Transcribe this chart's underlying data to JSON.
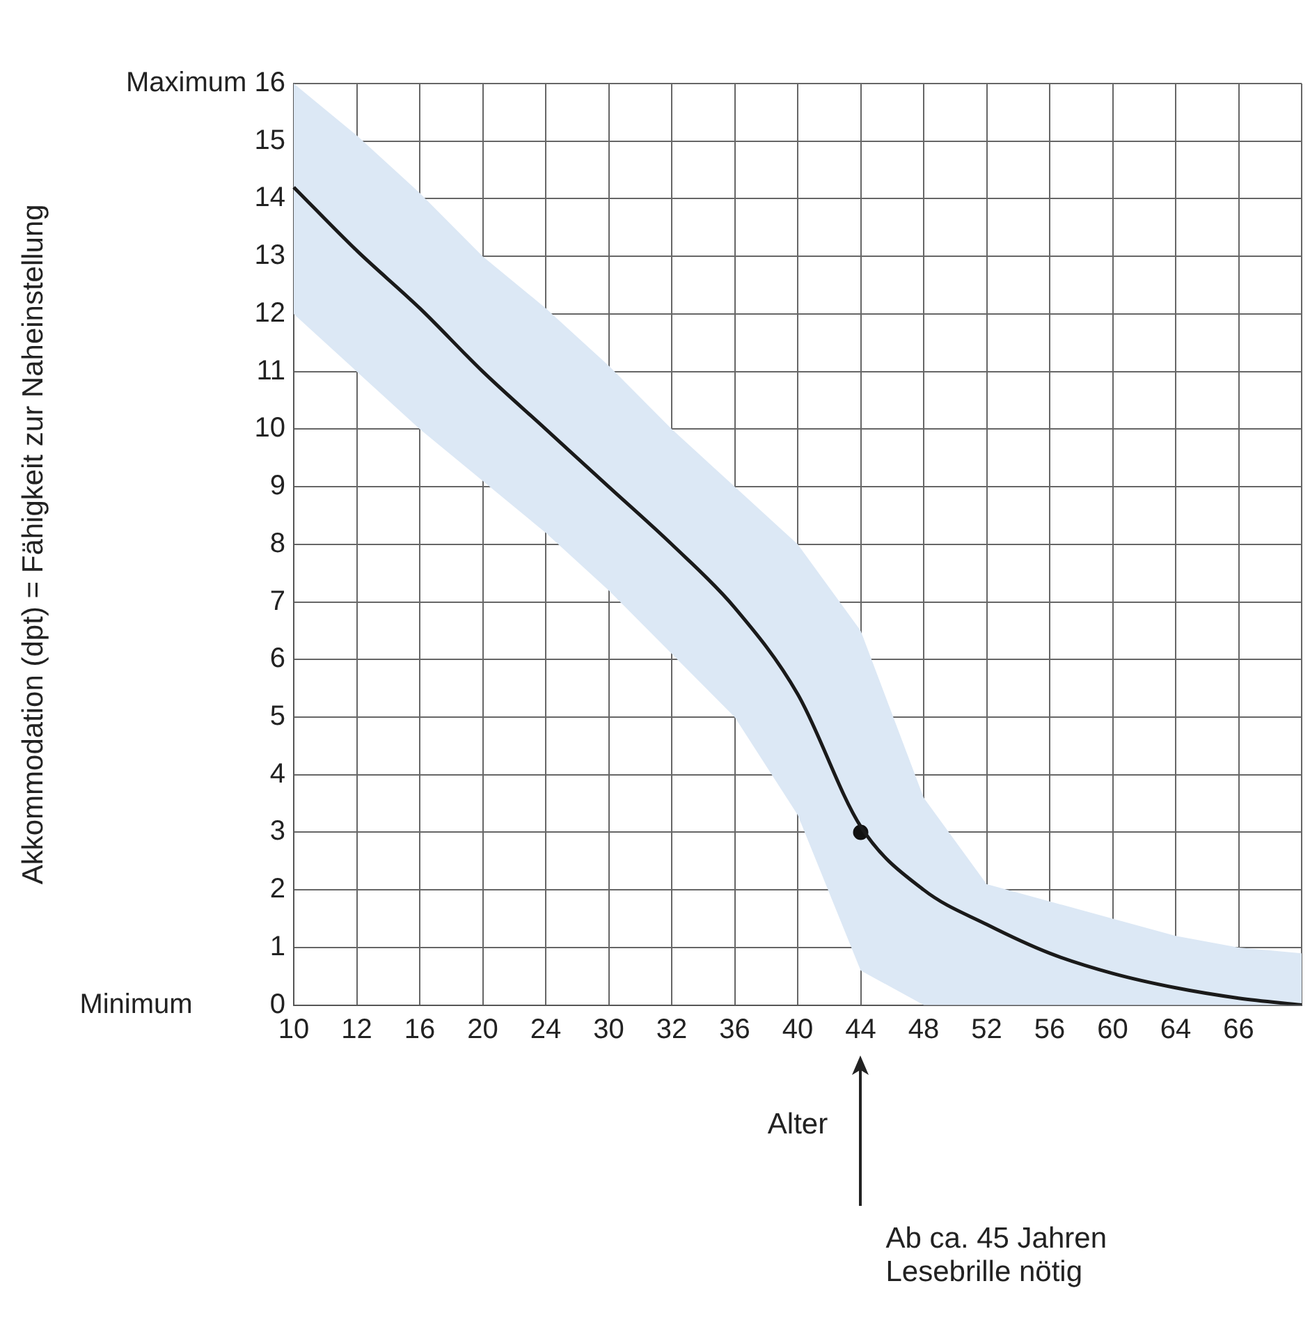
{
  "chart_data": {
    "type": "line",
    "xlabel": "Alter",
    "ylabel": "Akkommodation (dpt) = Fähigkeit zur Naheinstellung",
    "categories": [
      "10",
      "12",
      "16",
      "20",
      "24",
      "30",
      "32",
      "36",
      "40",
      "44",
      "48",
      "52",
      "56",
      "60",
      "64",
      "66",
      null
    ],
    "series": [
      {
        "color": "#1a1a1a",
        "values": [
          14.2,
          13.1,
          12.1,
          11.0,
          10.0,
          9.0,
          8.0,
          6.9,
          5.4,
          3.1,
          2.0,
          1.4,
          0.9,
          0.55,
          0.3,
          0.12,
          0.0
        ],
        "lower": [
          12.0,
          11.0,
          10.0,
          9.1,
          8.2,
          7.2,
          6.1,
          5.0,
          3.3,
          0.6,
          0.0,
          0.0,
          0.0,
          0.0,
          0.0,
          0.0,
          0.0
        ],
        "upper": [
          16.0,
          15.1,
          14.1,
          13.0,
          12.1,
          11.1,
          10.0,
          9.0,
          8.0,
          6.5,
          3.6,
          2.1,
          1.8,
          1.5,
          1.2,
          1.0,
          0.9
        ]
      },
      {
        "type": "scatter",
        "color": "#111111",
        "marker": "circle",
        "x": [
          "44"
        ],
        "values": [
          3
        ]
      }
    ],
    "ylim": [
      0,
      16
    ],
    "yticks": [
      {
        "value": 0,
        "label": "Minimum          0"
      },
      1,
      2,
      3,
      4,
      5,
      6,
      7,
      8,
      9,
      10,
      11,
      12,
      13,
      14,
      15,
      {
        "value": 16,
        "label": "Maximum 16"
      }
    ],
    "grid": true,
    "legend": false,
    "marker": "none",
    "annotations": [
      "Ab ca. 45 Jahren\nLesebrille nötig"
    ]
  }
}
